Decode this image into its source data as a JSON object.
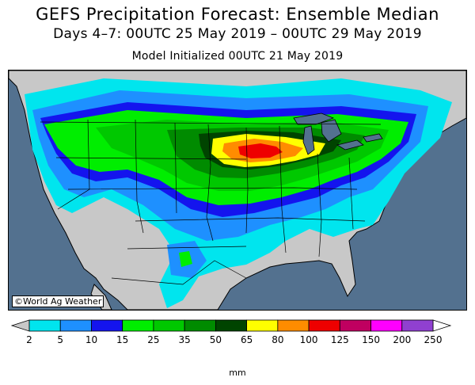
{
  "title": "GEFS Precipitation Forecast: Ensemble Median",
  "subtitle": "Days 4–7: 00UTC 25 May 2019 – 00UTC 29 May 2019",
  "initialized": "Model Initialized 00UTC 21 May 2019",
  "credit": "©World Ag Weather",
  "legend": {
    "units": "mm",
    "ticks": [
      "2",
      "5",
      "10",
      "15",
      "25",
      "35",
      "50",
      "65",
      "80",
      "100",
      "125",
      "150",
      "200",
      "250"
    ],
    "colors": [
      "#00e5ee",
      "#1e90ff",
      "#1414ee",
      "#00ee00",
      "#00c800",
      "#008b00",
      "#004400",
      "#ffff00",
      "#ff8c00",
      "#ee0000",
      "#c00060",
      "#ff00ff",
      "#9040d0"
    ],
    "under_color": "#c8c8c8",
    "over_color": "#ffffff"
  },
  "map_colors": {
    "ocean": "#53718f",
    "land": "#c8c8c8",
    "lake": "#53718f",
    "border": "#000000"
  }
}
